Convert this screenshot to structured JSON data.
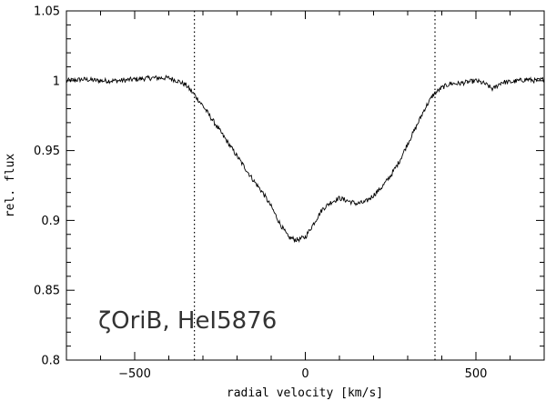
{
  "chart_data": {
    "type": "line",
    "title": "",
    "xlabel": "radial velocity [km/s]",
    "ylabel": "rel. flux",
    "xlim": [
      -700,
      700
    ],
    "ylim": [
      0.8,
      1.05
    ],
    "x_ticks": [
      -500,
      0,
      500
    ],
    "x_tick_labels": [
      "−500",
      "0",
      "500"
    ],
    "y_ticks": [
      0.8,
      0.85,
      0.9,
      0.95,
      1.0,
      1.05
    ],
    "y_tick_labels": [
      "0.8",
      "0.85",
      "0.9",
      "0.95",
      "1",
      "1.05"
    ],
    "grid": false,
    "legend": "none",
    "annotation": "ζOriB,  HeI5876",
    "vlines": [
      -325,
      380
    ],
    "series": [
      {
        "x": [
          -700,
          -650,
          -600,
          -550,
          -500,
          -450,
          -400,
          -375,
          -350,
          -325,
          -300,
          -275,
          -250,
          -225,
          -200,
          -175,
          -150,
          -125,
          -100,
          -75,
          -50,
          -25,
          0,
          25,
          50,
          75,
          100,
          125,
          150,
          175,
          200,
          225,
          250,
          275,
          300,
          325,
          350,
          375,
          400,
          425,
          450,
          475,
          500,
          525,
          550,
          575,
          600,
          625,
          650,
          675,
          700
        ],
        "y": [
          1.0,
          1.001,
          1.0,
          1.0,
          1.001,
          1.002,
          1.002,
          1.0,
          0.997,
          0.99,
          0.982,
          0.973,
          0.964,
          0.955,
          0.946,
          0.937,
          0.928,
          0.92,
          0.91,
          0.898,
          0.888,
          0.886,
          0.888,
          0.898,
          0.908,
          0.913,
          0.916,
          0.914,
          0.912,
          0.913,
          0.918,
          0.924,
          0.932,
          0.942,
          0.955,
          0.967,
          0.98,
          0.99,
          0.995,
          0.998,
          0.998,
          0.999,
          1.0,
          0.998,
          0.994,
          0.999,
          0.999,
          1.0,
          1.001,
          1.0,
          1.001
        ]
      }
    ]
  }
}
